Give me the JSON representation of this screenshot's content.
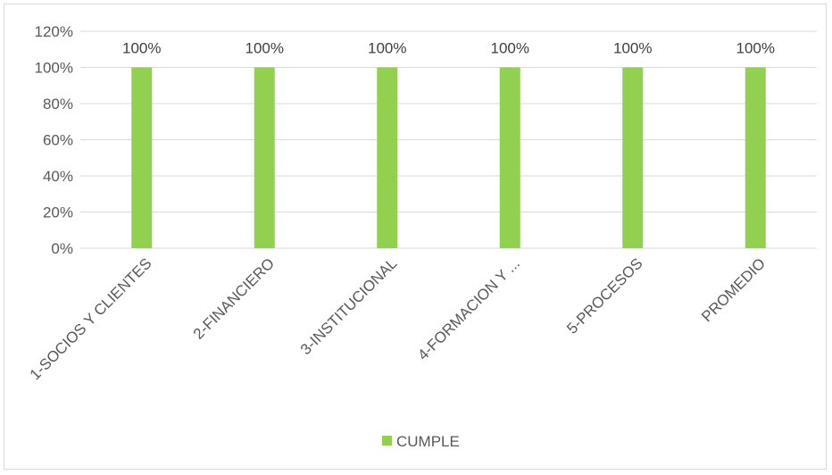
{
  "chart_data": {
    "type": "bar",
    "title": "",
    "xlabel": "",
    "ylabel": "",
    "categories": [
      "1-SOCIOS Y CLIENTES",
      "2-FINANCIERO",
      "3-INSTITUCIONAL",
      "4-FORMACION Y ...",
      "5-PROCESOS",
      "PROMEDIO"
    ],
    "series": [
      {
        "name": "CUMPLE",
        "values": [
          100,
          100,
          100,
          100,
          100,
          100
        ],
        "data_labels": [
          "100%",
          "100%",
          "100%",
          "100%",
          "100%",
          "100%"
        ],
        "color": "#92d050"
      }
    ],
    "ylim": [
      0,
      120
    ],
    "yticks": [
      0,
      20,
      40,
      60,
      80,
      100,
      120
    ],
    "ytick_labels": [
      "0%",
      "20%",
      "40%",
      "60%",
      "80%",
      "100%",
      "120%"
    ],
    "grid": true,
    "gridline_color": "#d9d9d9",
    "legend_position": "bottom"
  }
}
